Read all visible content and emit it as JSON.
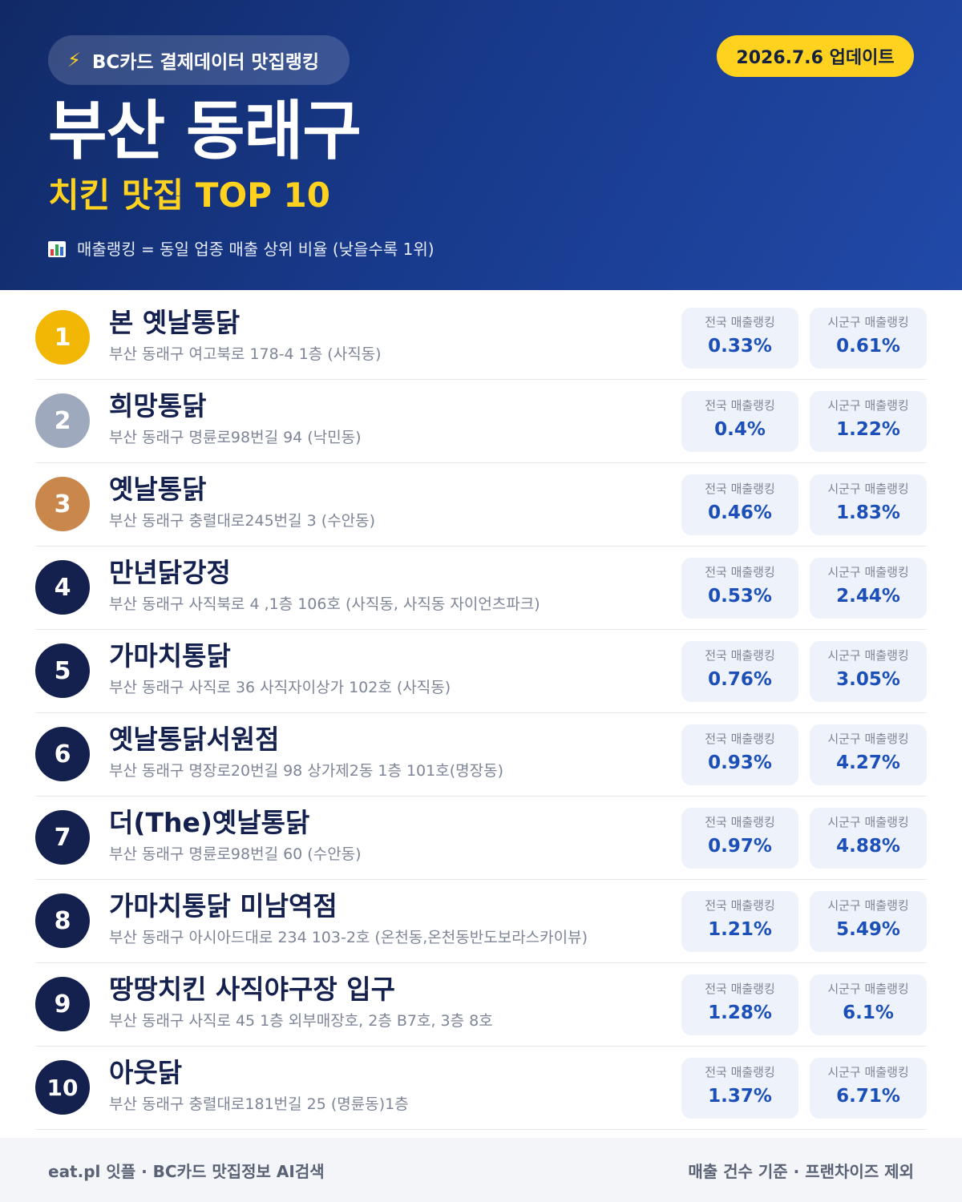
{
  "header": {
    "badge_icon": "lightning-icon",
    "badge_text": "BC카드 결제데이터 맛집랭킹",
    "update_label": "2026.7.6 업데이트",
    "region": "부산 동래구",
    "subtitle": "치킨 맛집 TOP 10",
    "note_icon": "bar-chart-icon",
    "note": "매출랭킹 = 동일 업종 매출 상위 비율 (낮을수록 1위)"
  },
  "stat_labels": {
    "national": "전국 매출랭킹",
    "district": "시군구 매출랭킹"
  },
  "restaurants": [
    {
      "rank": "1",
      "name": "본 옛날통닭",
      "address": "부산 동래구 여고북로 178-4 1층 (사직동)",
      "national": "0.33%",
      "district": "0.61%"
    },
    {
      "rank": "2",
      "name": "희망통닭",
      "address": "부산 동래구 명륜로98번길 94 (낙민동)",
      "national": "0.4%",
      "district": "1.22%"
    },
    {
      "rank": "3",
      "name": "옛날통닭",
      "address": "부산 동래구 충렬대로245번길 3 (수안동)",
      "national": "0.46%",
      "district": "1.83%"
    },
    {
      "rank": "4",
      "name": "만년닭강정",
      "address": "부산 동래구 사직북로 4 ,1층 106호 (사직동, 사직동 자이언츠파크)",
      "national": "0.53%",
      "district": "2.44%"
    },
    {
      "rank": "5",
      "name": "가마치통닭",
      "address": "부산 동래구 사직로 36 사직자이상가 102호 (사직동)",
      "national": "0.76%",
      "district": "3.05%"
    },
    {
      "rank": "6",
      "name": "옛날통닭서원점",
      "address": "부산 동래구 명장로20번길 98 상가제2동 1층 101호(명장동)",
      "national": "0.93%",
      "district": "4.27%"
    },
    {
      "rank": "7",
      "name": "더(The)옛날통닭",
      "address": "부산 동래구 명륜로98번길 60 (수안동)",
      "national": "0.97%",
      "district": "4.88%"
    },
    {
      "rank": "8",
      "name": "가마치통닭 미남역점",
      "address": "부산 동래구 아시아드대로 234 103-2호 (온천동,온천동반도보라스카이뷰)",
      "national": "1.21%",
      "district": "5.49%"
    },
    {
      "rank": "9",
      "name": "땅땅치킨 사직야구장 입구",
      "address": "부산 동래구 사직로 45 1층 외부매장호, 2층 B7호, 3층 8호",
      "national": "1.28%",
      "district": "6.1%"
    },
    {
      "rank": "10",
      "name": "아웃닭",
      "address": "부산 동래구 충렬대로181번길 25 (명륜동)1층",
      "national": "1.37%",
      "district": "6.71%"
    }
  ],
  "colors": {
    "header_navy": "#112a66",
    "header_blue": "#2149a8",
    "accent_yellow": "#ffd21f",
    "gold": "#f2b705",
    "silver": "#9ea9bd",
    "bronze": "#c9874b",
    "rank_navy": "#14204d",
    "value_blue": "#1c4fb8"
  },
  "footer": {
    "left": "eat.pl 잇플 · BC카드 맛집정보 AI검색",
    "right": "매출 건수 기준 · 프랜차이즈 제외"
  }
}
